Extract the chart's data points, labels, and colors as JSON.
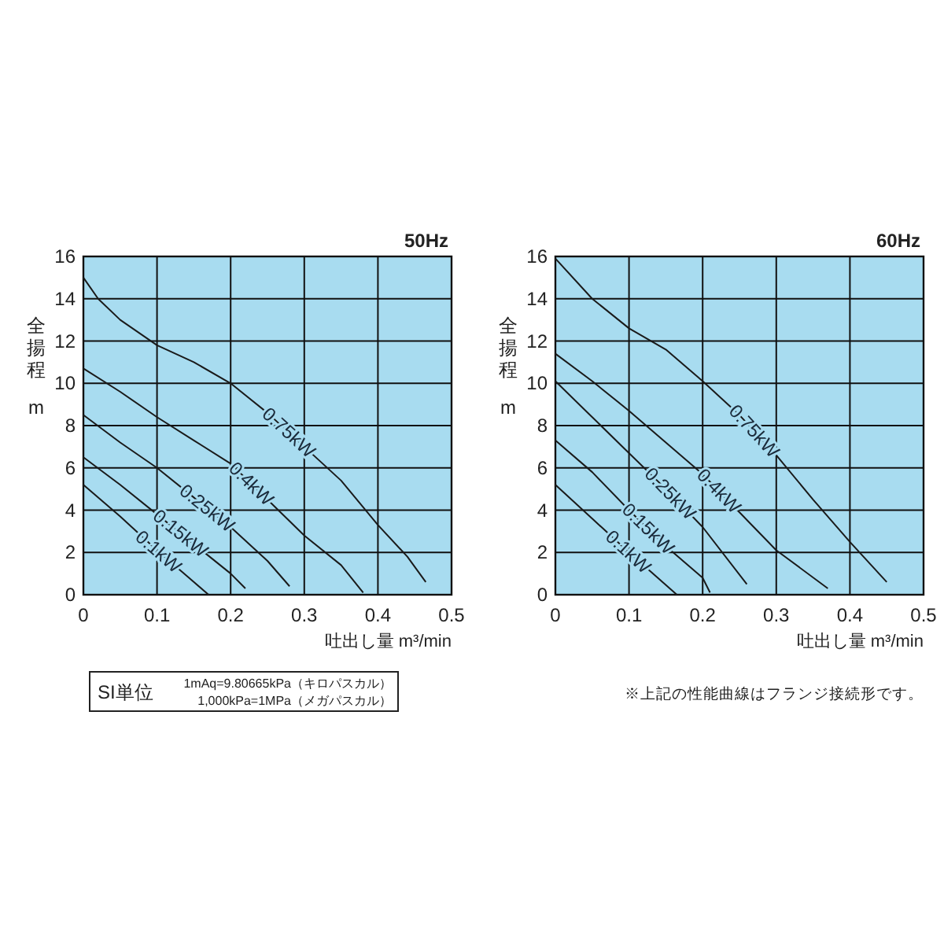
{
  "chart_data": [
    {
      "type": "line",
      "title": "50Hz",
      "xlabel": "吐出し量 m³/min",
      "ylabel": "全揚程 m",
      "xlim": [
        0,
        0.5
      ],
      "ylim": [
        0,
        16
      ],
      "xticks": [
        0,
        0.1,
        0.2,
        0.3,
        0.4,
        0.5
      ],
      "yticks": [
        0,
        2,
        4,
        6,
        8,
        10,
        12,
        14,
        16
      ],
      "grid": true,
      "annotations": [
        "SI単位",
        "1mAq=9.80665kPa（キロパスカル）",
        "1,000kPa=1MPa（メガパスカル）"
      ],
      "series": [
        {
          "name": "0.75kW",
          "color": "#1a1a1a",
          "x": [
            0,
            0.02,
            0.05,
            0.1,
            0.15,
            0.2,
            0.25,
            0.3,
            0.35,
            0.4,
            0.44,
            0.465
          ],
          "values": [
            15.0,
            14.0,
            13.0,
            11.8,
            11.0,
            10.0,
            8.6,
            7.0,
            5.4,
            3.3,
            1.8,
            0.6
          ]
        },
        {
          "name": "0.4kW",
          "color": "#1a1a1a",
          "x": [
            0,
            0.05,
            0.1,
            0.15,
            0.2,
            0.25,
            0.3,
            0.35,
            0.38
          ],
          "values": [
            10.7,
            9.6,
            8.4,
            7.3,
            6.2,
            4.5,
            2.8,
            1.4,
            0.1
          ]
        },
        {
          "name": "0.25kW",
          "color": "#1a1a1a",
          "x": [
            0,
            0.05,
            0.1,
            0.15,
            0.2,
            0.25,
            0.28
          ],
          "values": [
            8.5,
            7.2,
            6.0,
            4.6,
            3.2,
            1.6,
            0.4
          ]
        },
        {
          "name": "0.15kW",
          "color": "#1a1a1a",
          "x": [
            0,
            0.05,
            0.1,
            0.15,
            0.2,
            0.22
          ],
          "values": [
            6.5,
            5.2,
            3.8,
            2.4,
            1.0,
            0.3
          ]
        },
        {
          "name": "0.1kW",
          "color": "#1a1a1a",
          "x": [
            0,
            0.05,
            0.1,
            0.14,
            0.17
          ],
          "values": [
            5.2,
            3.7,
            2.1,
            0.9,
            0
          ]
        }
      ]
    },
    {
      "type": "line",
      "title": "60Hz",
      "xlabel": "吐出し量 m³/min",
      "ylabel": "全揚程 m",
      "xlim": [
        0,
        0.5
      ],
      "ylim": [
        0,
        16
      ],
      "xticks": [
        0,
        0.1,
        0.2,
        0.3,
        0.4,
        0.5
      ],
      "yticks": [
        0,
        2,
        4,
        6,
        8,
        10,
        12,
        14,
        16
      ],
      "grid": true,
      "annotations": [
        "※上記の性能曲線はフランジ接続形です。"
      ],
      "series": [
        {
          "name": "0.75kW",
          "color": "#1a1a1a",
          "x": [
            0,
            0.05,
            0.1,
            0.15,
            0.2,
            0.25,
            0.3,
            0.35,
            0.4,
            0.45
          ],
          "values": [
            15.9,
            14.0,
            12.6,
            11.6,
            10.1,
            8.5,
            6.6,
            4.5,
            2.5,
            0.6
          ]
        },
        {
          "name": "0.4kW",
          "color": "#1a1a1a",
          "x": [
            0,
            0.05,
            0.1,
            0.15,
            0.2,
            0.25,
            0.3,
            0.37
          ],
          "values": [
            11.4,
            10.1,
            8.7,
            7.2,
            5.7,
            3.9,
            2.1,
            0.3
          ]
        },
        {
          "name": "0.25kW",
          "color": "#1a1a1a",
          "x": [
            0,
            0.05,
            0.1,
            0.15,
            0.2,
            0.26
          ],
          "values": [
            10.1,
            8.4,
            6.7,
            5.0,
            3.2,
            0.5
          ]
        },
        {
          "name": "0.15kW",
          "color": "#1a1a1a",
          "x": [
            0,
            0.05,
            0.1,
            0.15,
            0.2,
            0.21
          ],
          "values": [
            7.3,
            5.8,
            4.0,
            2.3,
            0.8,
            0.1
          ]
        },
        {
          "name": "0.1kW",
          "color": "#1a1a1a",
          "x": [
            0,
            0.05,
            0.1,
            0.165
          ],
          "values": [
            5.2,
            3.6,
            2.0,
            0
          ]
        }
      ]
    }
  ]
}
